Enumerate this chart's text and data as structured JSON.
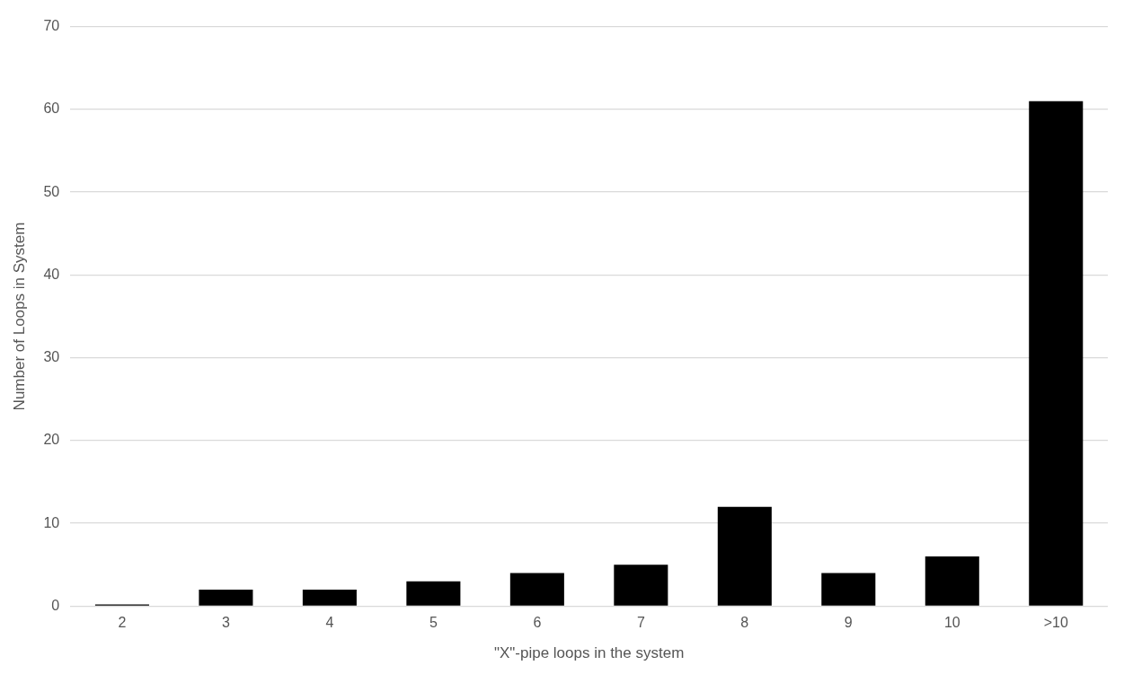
{
  "chart_data": {
    "type": "bar",
    "xlabel": "\"X\"-pipe loops in the system",
    "ylabel": "Number of Loops in System",
    "categories": [
      "2",
      "3",
      "4",
      "5",
      "6",
      "7",
      "8",
      "9",
      "10",
      ">10"
    ],
    "values": [
      0.2,
      2,
      2,
      3,
      4,
      5,
      12,
      4,
      6,
      61
    ],
    "color": "#000000",
    "ylim": [
      0,
      70
    ],
    "yticks": [
      0,
      10,
      20,
      30,
      40,
      50,
      60,
      70
    ],
    "grid": "y",
    "legend": false
  }
}
